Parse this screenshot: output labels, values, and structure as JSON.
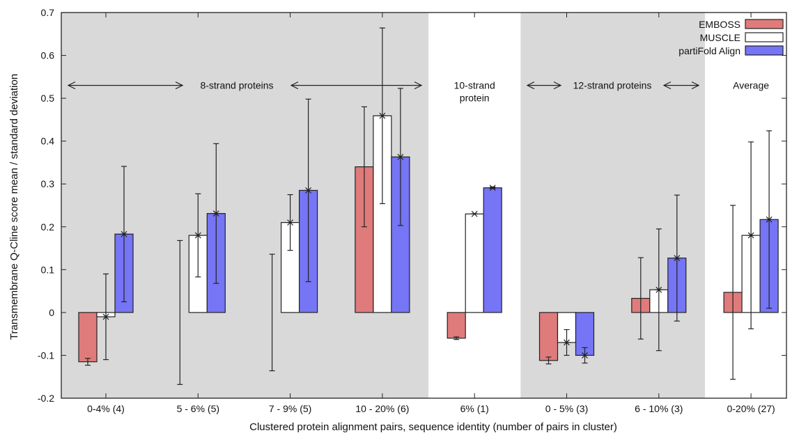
{
  "chart_data": {
    "type": "bar",
    "xlabel": "Clustered protein alignment pairs, sequence identity (number of pairs in cluster)",
    "ylabel": "Transmembrane Q-Cline score mean / standard deviation",
    "ylim": [
      -0.2,
      0.7
    ],
    "yticks": [
      "-0.2",
      "-0.1",
      "0",
      "0.1",
      "0.2",
      "0.3",
      "0.4",
      "0.5",
      "0.6",
      "0.7"
    ],
    "grid": false,
    "legend_position": "top-right",
    "categories": [
      "0-4% (4)",
      "5 - 6% (5)",
      "7 - 9% (5)",
      "10 - 20% (6)",
      "6% (1)",
      "0 - 5% (3)",
      "6 - 10% (3)",
      "0-20% (27)"
    ],
    "series": [
      {
        "name": "EMBOSS",
        "color": "#e07b7b",
        "values": [
          -0.115,
          0.0,
          0.0,
          0.34,
          -0.06,
          -0.112,
          0.033,
          0.047
        ],
        "errors": [
          0.008,
          0.168,
          0.136,
          0.14,
          0.003,
          0.008,
          0.095,
          0.203
        ]
      },
      {
        "name": "MUSCLE",
        "color": "#ffffff",
        "values": [
          -0.01,
          0.18,
          0.21,
          0.459,
          0.23,
          -0.07,
          0.053,
          0.18
        ],
        "errors": [
          0.1,
          0.097,
          0.065,
          0.205,
          0.0,
          0.03,
          0.142,
          0.218
        ]
      },
      {
        "name": "partiFold Align",
        "color": "#7575f5",
        "values": [
          0.183,
          0.231,
          0.285,
          0.363,
          0.291,
          -0.1,
          0.127,
          0.217
        ],
        "errors": [
          0.158,
          0.163,
          0.213,
          0.16,
          0.002,
          0.018,
          0.147,
          0.207
        ]
      }
    ],
    "regions": [
      {
        "label": "8-strand proteins",
        "shaded": true
      },
      {
        "label": "10-strand\nprotein",
        "shaded": false
      },
      {
        "label": "12-strand proteins",
        "shaded": true
      },
      {
        "label": "Average",
        "shaded": false
      }
    ],
    "shade_color": "#d9d9d9"
  }
}
